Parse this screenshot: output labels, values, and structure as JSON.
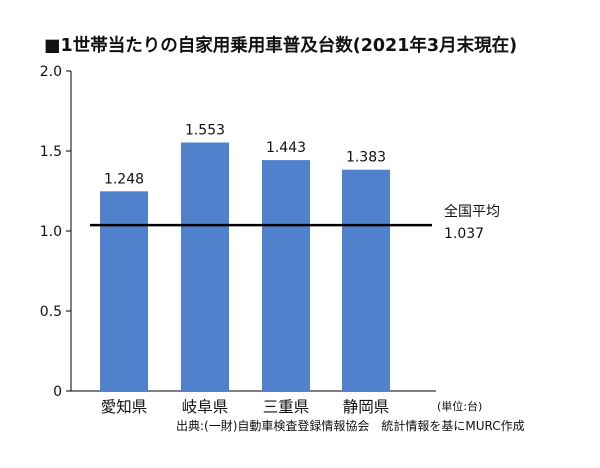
{
  "chart_data": {
    "type": "bar",
    "title": "■1世帯当たりの自家用乗用車普及台数(2021年3月末現在)",
    "categories": [
      "愛知県",
      "岐阜県",
      "三重県",
      "静岡県"
    ],
    "values": [
      1.248,
      1.553,
      1.443,
      1.383
    ],
    "value_labels": [
      "1.248",
      "1.553",
      "1.443",
      "1.383"
    ],
    "ylim": [
      0,
      2.0
    ],
    "yticks": [
      0,
      0.5,
      1.0,
      1.5,
      2.0
    ],
    "ytick_labels": [
      "0",
      "0.5",
      "1.0",
      "1.5",
      "2.0"
    ],
    "xlabel": "",
    "ylabel": "",
    "grid": false,
    "bar_color": "#4f81cc",
    "reference_line": {
      "value": 1.037,
      "label": "全国平均",
      "value_label": "1.037",
      "color": "#000000"
    },
    "unit_note": "(単位:台)",
    "source": "出典:(一財)自動車検査登録情報協会　統計情報を基にMURC作成"
  }
}
